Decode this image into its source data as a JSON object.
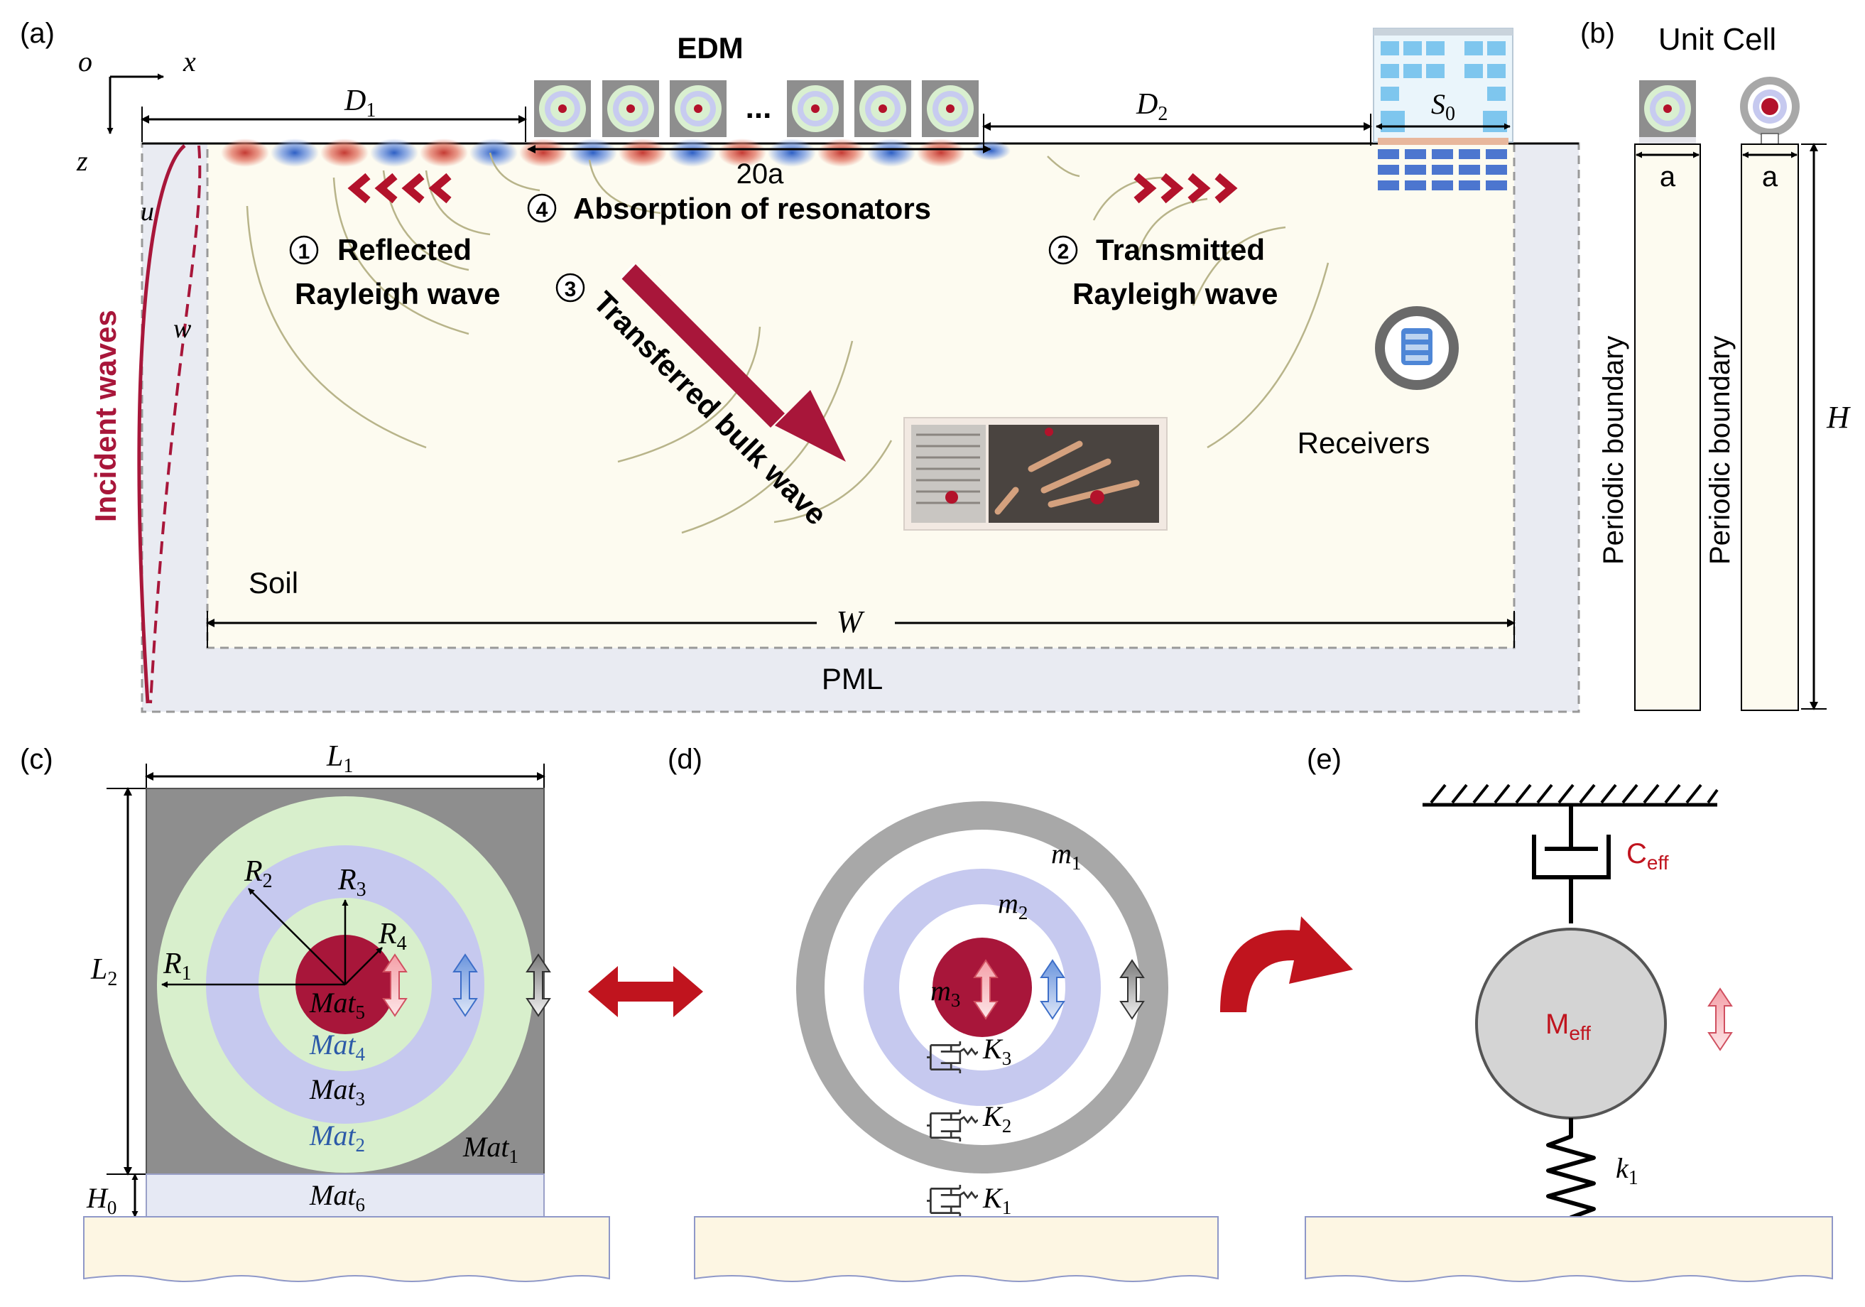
{
  "panels": {
    "a": "(a)",
    "b": "(b)",
    "c": "(c)",
    "d": "(d)",
    "e": "(e)"
  },
  "axes": {
    "o": "o",
    "x": "x",
    "z": "z"
  },
  "panel_a": {
    "edm": "EDM",
    "ellipsis": "...",
    "d1": "D",
    "d1_sub": "1",
    "d2": "D",
    "d2_sub": "2",
    "s0": "S",
    "s0_sub": "0",
    "twenty_a": "20a",
    "n1": "1",
    "n2": "2",
    "n3": "3",
    "n4": "4",
    "absorption": "Absorption of resonators",
    "reflected_l1": "Reflected",
    "reflected_l2": "Rayleigh wave",
    "transmitted_l1": "Transmitted",
    "transmitted_l2": "Rayleigh wave",
    "transferred": "Transferred bulk wave",
    "incident": "Incident waves",
    "u": "u",
    "w": "w",
    "receivers": "Receivers",
    "soil": "Soil",
    "W": "W",
    "pml": "PML"
  },
  "panel_b": {
    "title": "Unit Cell",
    "a1": "a",
    "a2": "a",
    "pb1": "Periodic boundary",
    "pb2": "Periodic boundary",
    "H": "H"
  },
  "panel_c": {
    "L1": "L",
    "L1_sub": "1",
    "L2": "L",
    "L2_sub": "2",
    "R1": "R",
    "R1_sub": "1",
    "R2": "R",
    "R2_sub": "2",
    "R3": "R",
    "R3_sub": "3",
    "R4": "R",
    "R4_sub": "4",
    "mat1": "Mat",
    "mat1_sub": "1",
    "mat2": "Mat",
    "mat2_sub": "2",
    "mat3": "Mat",
    "mat3_sub": "3",
    "mat4": "Mat",
    "mat4_sub": "4",
    "mat5": "Mat",
    "mat5_sub": "5",
    "mat6": "Mat",
    "mat6_sub": "6",
    "H0": "H",
    "H0_sub": "0"
  },
  "panel_d": {
    "m1": "m",
    "m1_sub": "1",
    "m2": "m",
    "m2_sub": "2",
    "m3": "m",
    "m3_sub": "3",
    "K1": "K",
    "K1_sub": "1",
    "K2": "K",
    "K2_sub": "2",
    "K3": "K",
    "K3_sub": "3"
  },
  "panel_e": {
    "c": "C",
    "c_sub": "eff",
    "m": "M",
    "m_sub": "eff",
    "k": "k",
    "k_sub": "1"
  },
  "colors": {
    "crimson": "#a8163a",
    "soil": "#fdfbf0",
    "pml": "#e9ebf2",
    "gray": "#a8a8a8",
    "green": "#d8efcc",
    "blue": "#c6c9ef",
    "mat_blue": "#2c5aa8",
    "red_label": "#c0141e"
  }
}
